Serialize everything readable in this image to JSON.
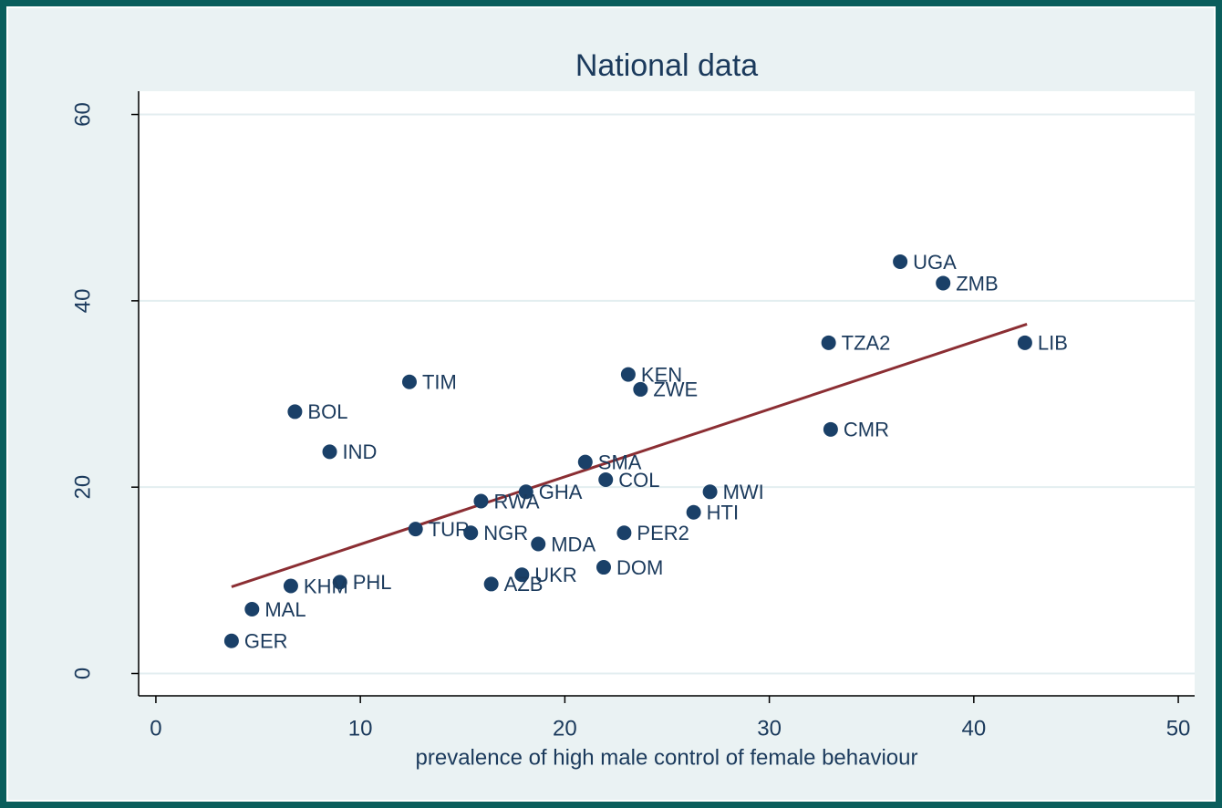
{
  "chart_data": {
    "type": "scatter",
    "title": "National data",
    "x_label": "prevalence of high male control of female behaviour",
    "labels": [
      "UGA",
      "ZMB",
      "LIB",
      "TZA2",
      "CMR",
      "KEN",
      "ZWE",
      "TIM",
      "BOL",
      "IND",
      "SMA",
      "COL",
      "MWI",
      "GHA",
      "RWA",
      "HTI",
      "TUR",
      "NGR",
      "PER2",
      "MDA",
      "DOM",
      "UKR",
      "AZB",
      "PHL",
      "KHM",
      "MAL",
      "GER"
    ],
    "x": [
      36.4,
      38.5,
      42.5,
      32.9,
      33.0,
      23.1,
      23.7,
      12.4,
      6.8,
      8.5,
      21.0,
      22.0,
      27.1,
      18.1,
      15.9,
      26.3,
      12.7,
      15.4,
      22.9,
      18.7,
      21.9,
      17.9,
      16.4,
      9.0,
      6.6,
      4.7,
      3.7
    ],
    "values": [
      44.2,
      41.9,
      35.5,
      35.5,
      26.2,
      32.1,
      30.5,
      31.3,
      28.1,
      23.8,
      22.7,
      20.8,
      19.5,
      19.5,
      18.5,
      17.3,
      15.5,
      15.1,
      15.1,
      13.9,
      11.4,
      10.6,
      9.6,
      9.8,
      9.4,
      6.9,
      3.5
    ],
    "color": "#1a4068",
    "fit": {
      "x": [
        3.7,
        42.6
      ],
      "values": [
        9.3,
        37.5
      ],
      "color": "#8b2e33"
    },
    "xlim": [
      -0.8,
      50.8
    ],
    "ylim": [
      -2.3,
      62.5
    ],
    "xticks": [
      0,
      10,
      20,
      30,
      40,
      50
    ],
    "yticks": [
      0,
      20,
      40,
      60
    ],
    "grid": true
  }
}
